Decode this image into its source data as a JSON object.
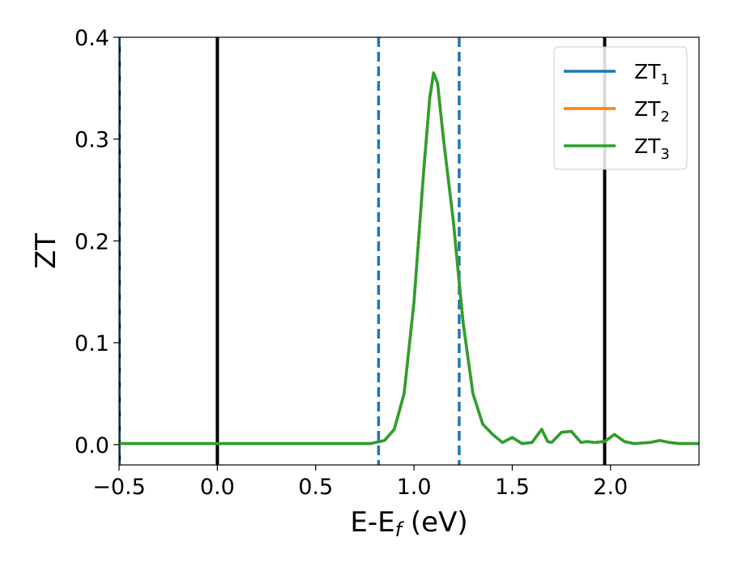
{
  "chart_data": {
    "type": "line",
    "xlabel": "E-E",
    "xlabel_sub": "f",
    "xlabel_unit": " (eV)",
    "ylabel": "ZT",
    "xlim": [
      -0.5,
      2.45
    ],
    "ylim": [
      -0.02,
      0.4
    ],
    "x_ticks": [
      -0.5,
      0.0,
      0.5,
      1.0,
      1.5,
      2.0
    ],
    "x_tick_labels": [
      "−0.5",
      "0.0",
      "0.5",
      "1.0",
      "1.5",
      "2.0"
    ],
    "y_ticks": [
      0.0,
      0.1,
      0.2,
      0.3,
      0.4
    ],
    "y_tick_labels": [
      "0.0",
      "0.1",
      "0.2",
      "0.3",
      "0.4"
    ],
    "grid": false,
    "legend_position": "top-right",
    "series": [
      {
        "name": "ZT",
        "sub": "1",
        "color": "#1f77b4",
        "x": [
          -0.5,
          0.0,
          0.5,
          0.78,
          0.85,
          0.9,
          0.95,
          1.0,
          1.05,
          1.08,
          1.1,
          1.12,
          1.15,
          1.2,
          1.25,
          1.3,
          1.35,
          1.4,
          1.45,
          1.5,
          1.55,
          1.6,
          1.65,
          1.68,
          1.7,
          1.75,
          1.8,
          1.85,
          1.88,
          1.92,
          1.97,
          2.02,
          2.07,
          2.12,
          2.2,
          2.25,
          2.3,
          2.35,
          2.45
        ],
        "y": [
          0.001,
          0.001,
          0.001,
          0.001,
          0.004,
          0.015,
          0.05,
          0.14,
          0.27,
          0.34,
          0.365,
          0.355,
          0.3,
          0.22,
          0.12,
          0.05,
          0.02,
          0.01,
          0.002,
          0.007,
          0.001,
          0.002,
          0.015,
          0.003,
          0.002,
          0.012,
          0.013,
          0.002,
          0.003,
          0.002,
          0.003,
          0.01,
          0.003,
          0.001,
          0.002,
          0.004,
          0.002,
          0.001,
          0.001
        ]
      },
      {
        "name": "ZT",
        "sub": "2",
        "color": "#ff7f0e",
        "x": [
          -0.5,
          0.0,
          0.5,
          0.78,
          0.85,
          0.9,
          0.95,
          1.0,
          1.05,
          1.08,
          1.1,
          1.12,
          1.15,
          1.2,
          1.25,
          1.3,
          1.35,
          1.4,
          1.45,
          1.5,
          1.55,
          1.6,
          1.65,
          1.68,
          1.7,
          1.75,
          1.8,
          1.85,
          1.88,
          1.92,
          1.97,
          2.02,
          2.07,
          2.12,
          2.2,
          2.25,
          2.3,
          2.35,
          2.45
        ],
        "y": [
          0.001,
          0.001,
          0.001,
          0.001,
          0.004,
          0.015,
          0.05,
          0.14,
          0.27,
          0.34,
          0.365,
          0.355,
          0.3,
          0.22,
          0.12,
          0.05,
          0.02,
          0.01,
          0.002,
          0.007,
          0.001,
          0.002,
          0.015,
          0.003,
          0.002,
          0.012,
          0.013,
          0.002,
          0.003,
          0.002,
          0.003,
          0.01,
          0.003,
          0.001,
          0.002,
          0.004,
          0.002,
          0.001,
          0.001
        ]
      },
      {
        "name": "ZT",
        "sub": "3",
        "color": "#2ca02c",
        "x": [
          -0.5,
          0.0,
          0.5,
          0.78,
          0.85,
          0.9,
          0.95,
          1.0,
          1.05,
          1.08,
          1.1,
          1.12,
          1.15,
          1.2,
          1.25,
          1.3,
          1.35,
          1.4,
          1.45,
          1.5,
          1.55,
          1.6,
          1.65,
          1.68,
          1.7,
          1.75,
          1.8,
          1.85,
          1.88,
          1.92,
          1.97,
          2.02,
          2.07,
          2.12,
          2.2,
          2.25,
          2.3,
          2.35,
          2.45
        ],
        "y": [
          0.001,
          0.001,
          0.001,
          0.001,
          0.004,
          0.015,
          0.05,
          0.14,
          0.27,
          0.34,
          0.365,
          0.355,
          0.3,
          0.22,
          0.12,
          0.05,
          0.02,
          0.01,
          0.002,
          0.007,
          0.001,
          0.002,
          0.015,
          0.003,
          0.002,
          0.012,
          0.013,
          0.002,
          0.003,
          0.002,
          0.003,
          0.01,
          0.003,
          0.001,
          0.002,
          0.004,
          0.002,
          0.001,
          0.001
        ]
      }
    ],
    "vlines": [
      {
        "x": -0.5,
        "color": "#000000",
        "style": "solid"
      },
      {
        "x": 0.0,
        "color": "#000000",
        "style": "solid"
      },
      {
        "x": 1.97,
        "color": "#000000",
        "style": "solid"
      },
      {
        "x": -0.5,
        "color": "#1f77b4",
        "style": "dashed"
      },
      {
        "x": 0.82,
        "color": "#1f77b4",
        "style": "dashed"
      },
      {
        "x": 1.23,
        "color": "#1f77b4",
        "style": "dashed"
      }
    ]
  }
}
